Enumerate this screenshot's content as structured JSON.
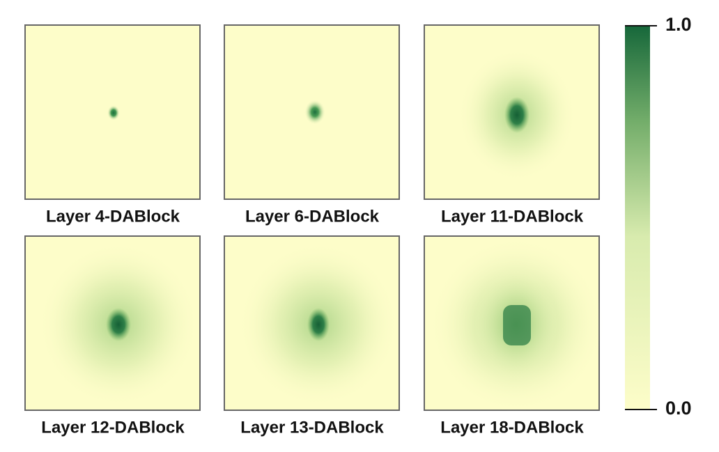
{
  "panels": [
    {
      "label": "Layer 4-DABlock"
    },
    {
      "label": "Layer 6-DABlock"
    },
    {
      "label": "Layer 11-DABlock"
    },
    {
      "label": "Layer 12-DABlock"
    },
    {
      "label": "Layer 13-DABlock"
    },
    {
      "label": "Layer 18-DABlock"
    }
  ],
  "colorbar": {
    "low_color": "#fdfdc9",
    "high_color": "#16673a",
    "lim": [
      0,
      1
    ],
    "ticks": [
      {
        "value": 0,
        "label": "0.0"
      },
      {
        "value": 1,
        "label": "1.0"
      }
    ]
  }
}
